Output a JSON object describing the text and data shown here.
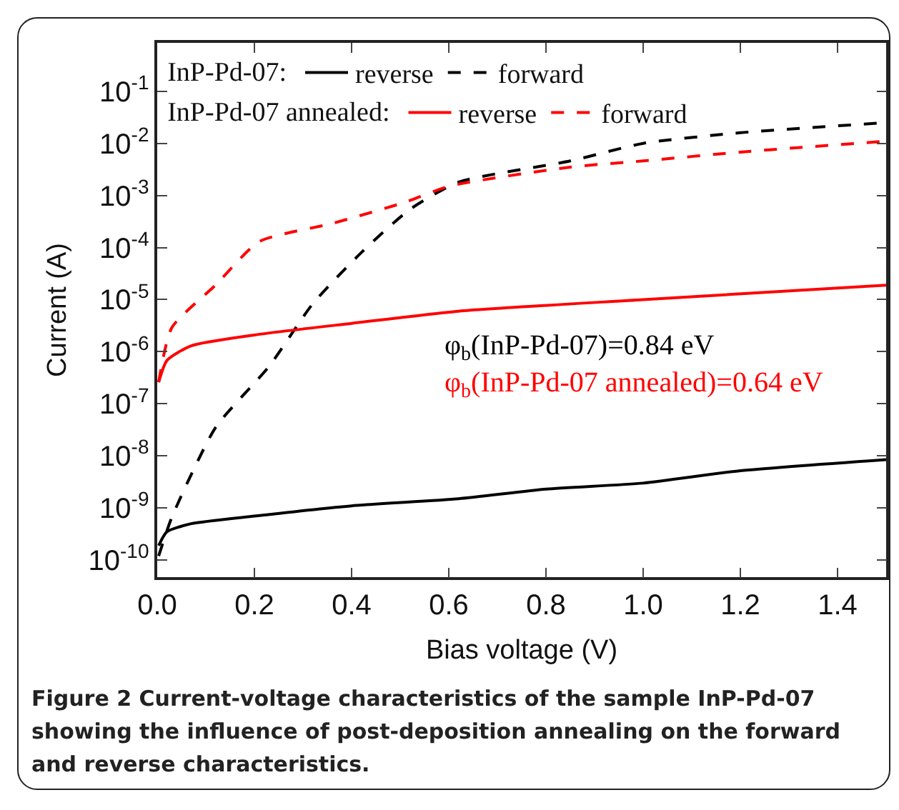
{
  "chart_data": {
    "type": "line",
    "xlabel": "Bias voltage (V)",
    "ylabel": "Current (A)",
    "xlim": [
      0,
      1.5
    ],
    "ylim": [
      4.7e-11,
      0.85
    ],
    "log": "y",
    "grid": false,
    "legend": "top left",
    "marker": "none",
    "xticks": [
      {
        "value": 0,
        "label": "0.0"
      },
      {
        "value": 0.2,
        "label": "0.2"
      },
      {
        "value": 0.4,
        "label": "0.4"
      },
      {
        "value": 0.6,
        "label": "0.6"
      },
      {
        "value": 0.8,
        "label": "0.8"
      },
      {
        "value": 1.0,
        "label": "1.0"
      },
      {
        "value": 1.2,
        "label": "1.2"
      },
      {
        "value": 1.4,
        "label": "1.4"
      }
    ],
    "yticks": [
      {
        "value": 1e-10,
        "label": "10$^{-10}$"
      },
      {
        "value": 1e-09,
        "label": "10$^{-9}$"
      },
      {
        "value": 1e-08,
        "label": "10$^{-8}$"
      },
      {
        "value": 1e-07,
        "label": "10$^{-7}$"
      },
      {
        "value": 1e-06,
        "label": "10$^{-6}$"
      },
      {
        "value": 1e-05,
        "label": "10$^{-5}$"
      },
      {
        "value": 0.0001,
        "label": "10$^{-4}$"
      },
      {
        "value": 0.001,
        "label": "10$^{-3}$"
      },
      {
        "value": 0.01,
        "label": "10$^{-2}$"
      },
      {
        "value": 0.1,
        "label": "10$^{-1}$"
      }
    ],
    "series": [
      {
        "name": "reverse",
        "color": "#000000",
        "line_style": "solid",
        "x": [
          0.003,
          0.02,
          0.07,
          0.2,
          0.4,
          0.62,
          0.8,
          1.0,
          1.2,
          1.5
        ],
        "values": [
          1.9e-10,
          3.5e-10,
          5e-10,
          7e-10,
          1.1e-09,
          1.5e-09,
          2.3e-09,
          3e-09,
          5.2e-09,
          8.5e-09
        ]
      },
      {
        "name": "forward",
        "color": "#000000",
        "line_style": "dashed",
        "x": [
          0.003,
          0.03,
          0.12,
          0.23,
          0.32,
          0.42,
          0.52,
          0.62,
          0.85,
          1.0,
          1.2,
          1.5
        ],
        "values": [
          1.2e-10,
          6.6e-10,
          3.5e-08,
          5.2e-07,
          8.3e-06,
          8e-05,
          0.00054,
          0.0018,
          0.0046,
          0.01,
          0.016,
          0.025
        ]
      },
      {
        "name": "reverse",
        "color": "#ff0000",
        "line_style": "solid",
        "x": [
          0.003,
          0.02,
          0.07,
          0.2,
          0.4,
          0.62,
          1.0,
          1.5
        ],
        "values": [
          2.6e-07,
          6.8e-07,
          1.3e-06,
          2.1e-06,
          3.5e-06,
          6e-06,
          1e-05,
          1.9e-05
        ]
      },
      {
        "name": "forward",
        "color": "#ff0000",
        "line_style": "dashed",
        "x": [
          0.003,
          0.03,
          0.12,
          0.21,
          0.36,
          0.51,
          0.6,
          0.85,
          1.0,
          1.2,
          1.5
        ],
        "values": [
          2.6e-07,
          2.9e-06,
          1.9e-05,
          0.00013,
          0.00029,
          0.00074,
          0.0015,
          0.0035,
          0.0046,
          0.0068,
          0.011
        ]
      }
    ],
    "annotations": [
      "InP-Pd-07:",
      "InP-Pd-07 annealed:",
      "φ$_{b}$(InP-Pd-07)=0.84 eV",
      "φ$_{b}$(InP-Pd-07 annealed)=0.64 eV",
      "Figure 2 Current-voltage characteristics of the sample InP-Pd-07 showing the influence of post-deposition annealing on the forward and reverse characteristics."
    ]
  }
}
